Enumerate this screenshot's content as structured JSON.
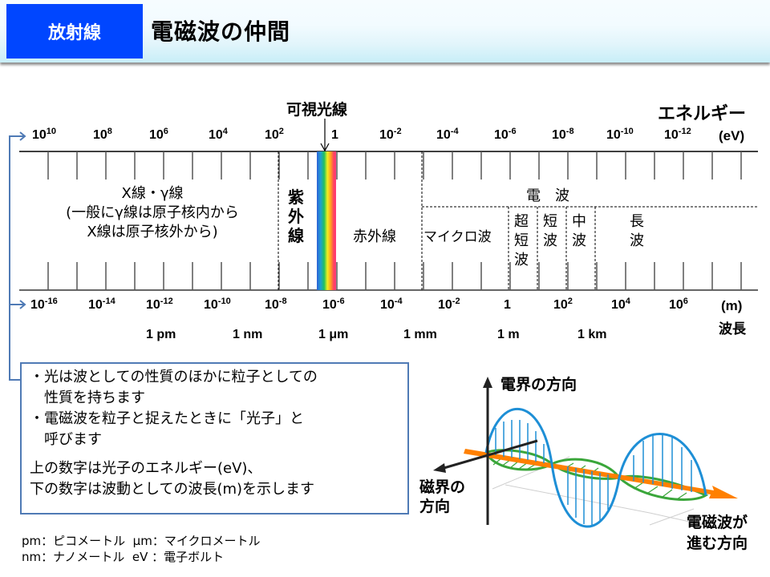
{
  "header": {
    "badge": "放射線",
    "title": "電磁波の仲間"
  },
  "colors": {
    "badge_bg": "#0046ff",
    "bracket": "#4f7ab5",
    "e_field": "#1e8fd6",
    "b_field": "#3aa63a",
    "propagation": "#ff8000"
  },
  "spectrum": {
    "visible_label": "可視光線",
    "energy_title": "エネルギー",
    "energy_unit": "(eV)",
    "energy_ticks": [
      {
        "base": "10",
        "exp": "10"
      },
      {
        "base": "10",
        "exp": "8"
      },
      {
        "base": "10",
        "exp": "6"
      },
      {
        "base": "10",
        "exp": "4"
      },
      {
        "base": "10",
        "exp": "2"
      },
      {
        "base": "1",
        "exp": ""
      },
      {
        "base": "10",
        "exp": "-2"
      },
      {
        "base": "10",
        "exp": "-4"
      },
      {
        "base": "10",
        "exp": "-6"
      },
      {
        "base": "10",
        "exp": "-8"
      },
      {
        "base": "10",
        "exp": "-10"
      },
      {
        "base": "10",
        "exp": "-12"
      }
    ],
    "wavelength_ticks": [
      {
        "base": "10",
        "exp": "-16"
      },
      {
        "base": "10",
        "exp": "-14"
      },
      {
        "base": "10",
        "exp": "-12"
      },
      {
        "base": "10",
        "exp": "-10"
      },
      {
        "base": "10",
        "exp": "-8"
      },
      {
        "base": "10",
        "exp": "-6"
      },
      {
        "base": "10",
        "exp": "-4"
      },
      {
        "base": "10",
        "exp": "-2"
      },
      {
        "base": "1",
        "exp": ""
      },
      {
        "base": "10",
        "exp": "2"
      },
      {
        "base": "10",
        "exp": "4"
      },
      {
        "base": "10",
        "exp": "6"
      }
    ],
    "wavelength_unit": "(m)",
    "wavelength_title": "波長",
    "units": [
      "1 pm",
      "1 nm",
      "1 μm",
      "1 mm",
      "1 m",
      "1 km"
    ],
    "regions": {
      "xray_gamma": [
        "X線・γ線",
        "(一般にγ線は原子核内から",
        "X線は原子核外から)"
      ],
      "uv": "紫外線",
      "ir": "赤外線",
      "radio": "電　波",
      "microwave": "マイクロ波",
      "vhf": "超短波",
      "hf": "短波",
      "mf": "中波",
      "lf": "長波"
    }
  },
  "notes": {
    "bullets": [
      "・光は波としての性質のほかに粒子としての",
      "　性質を持ちます",
      "・電磁波を粒子と捉えたときに「光子」と",
      "　呼びます"
    ],
    "explanation": [
      "上の数字は光子のエネルギー(eV)、",
      "下の数字は波動としての波長(m)を示します"
    ]
  },
  "footnotes": [
    "pm：ピコメートル  μm：マイクロメートル",
    "nm：ナノメートル  eV ：電子ボルト"
  ],
  "wave_diagram": {
    "e_field": "電界の方向",
    "b_field": [
      "磁界の",
      "方向"
    ],
    "propagation": [
      "電磁波が",
      "進む方向"
    ]
  }
}
